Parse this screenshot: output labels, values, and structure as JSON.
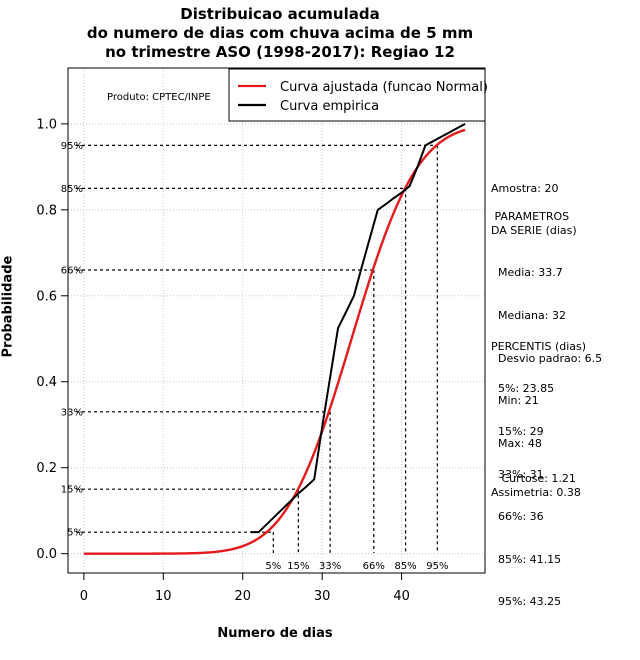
{
  "chart_data": {
    "type": "line",
    "title": [
      "Distribuicao acumulada",
      "do numero de dias com chuva acima de 5 mm",
      "no trimestre ASO (1998-2017): Regiao 12"
    ],
    "xlabel": "Numero de dias",
    "ylabel": "Probabilidade",
    "xlim": [
      -2,
      50.5
    ],
    "ylim": [
      -0.045,
      1.13
    ],
    "xticks": [
      0,
      10,
      20,
      30,
      40
    ],
    "yticks": [
      0.0,
      0.2,
      0.4,
      0.6,
      0.8,
      1.0
    ],
    "ytick_labels": [
      "0.0",
      "0.2",
      "0.4",
      "0.6",
      "0.8",
      "1.0"
    ],
    "grid": true,
    "producer_note": "Produto: CPTEC/INPE",
    "legend": {
      "position": "top-right",
      "entries": [
        {
          "label": "Curva ajustada (funcao Normal)",
          "color": "#e41a1c"
        },
        {
          "label": "Curva empirica",
          "color": "#000000"
        }
      ]
    },
    "series": [
      {
        "name": "Curva ajustada (funcao Normal)",
        "distribution": "normal",
        "mean": 33.7,
        "sd": 6.5,
        "x_range": [
          0,
          48
        ],
        "color": "#e41a1c"
      },
      {
        "name": "Curva empirica",
        "color": "#000000",
        "x": [
          21,
          22,
          23,
          24,
          25,
          26,
          27,
          28,
          29,
          30,
          31,
          32,
          33,
          34,
          35,
          36,
          37,
          38,
          39,
          40,
          41,
          42,
          43,
          44,
          45,
          46,
          47,
          48
        ],
        "y": [
          0.05,
          0.05,
          0.068,
          0.086,
          0.104,
          0.122,
          0.14,
          0.156,
          0.173,
          0.295,
          0.41,
          0.525,
          0.562,
          0.6,
          0.668,
          0.734,
          0.8,
          0.813,
          0.827,
          0.84,
          0.855,
          0.9,
          0.95,
          0.96,
          0.97,
          0.98,
          0.99,
          1.0
        ]
      }
    ],
    "percentile_lines": [
      {
        "label": "5%",
        "p": 0.05,
        "value": 23.85
      },
      {
        "label": "15%",
        "p": 0.15,
        "value": 29
      },
      {
        "label": "33%",
        "p": 0.33,
        "value": 31
      },
      {
        "label": "66%",
        "p": 0.66,
        "value": 36
      },
      {
        "label": "85%",
        "p": 0.85,
        "value": 41.15
      },
      {
        "label": "95%",
        "p": 0.95,
        "value": 43.25
      }
    ],
    "percentile_x_positions": [
      23.85,
      27,
      31,
      36.5,
      40.5,
      44.5
    ],
    "percentile_y_positions": [
      0.05,
      0.15,
      0.33,
      0.66,
      0.85,
      0.95
    ]
  },
  "sidebar": {
    "amostra": "Amostra: 20",
    "params_title": " PARAMETROS\nDA SERIE (dias)",
    "params": [
      "  Media: 33.7",
      "  Mediana: 32",
      "  Desvio padrao: 6.5",
      "  Min: 21",
      "  Max: 48"
    ],
    "perc_title": "PERCENTIS (dias)",
    "percs": [
      "  5%: 23.85",
      "  15%: 29",
      "  33%: 31",
      "  66%: 36",
      "  85%: 41.15",
      "  95%: 43.25"
    ],
    "curtose": "   Curtose: 1.21",
    "assimetria": "Assimetria: 0.38"
  }
}
